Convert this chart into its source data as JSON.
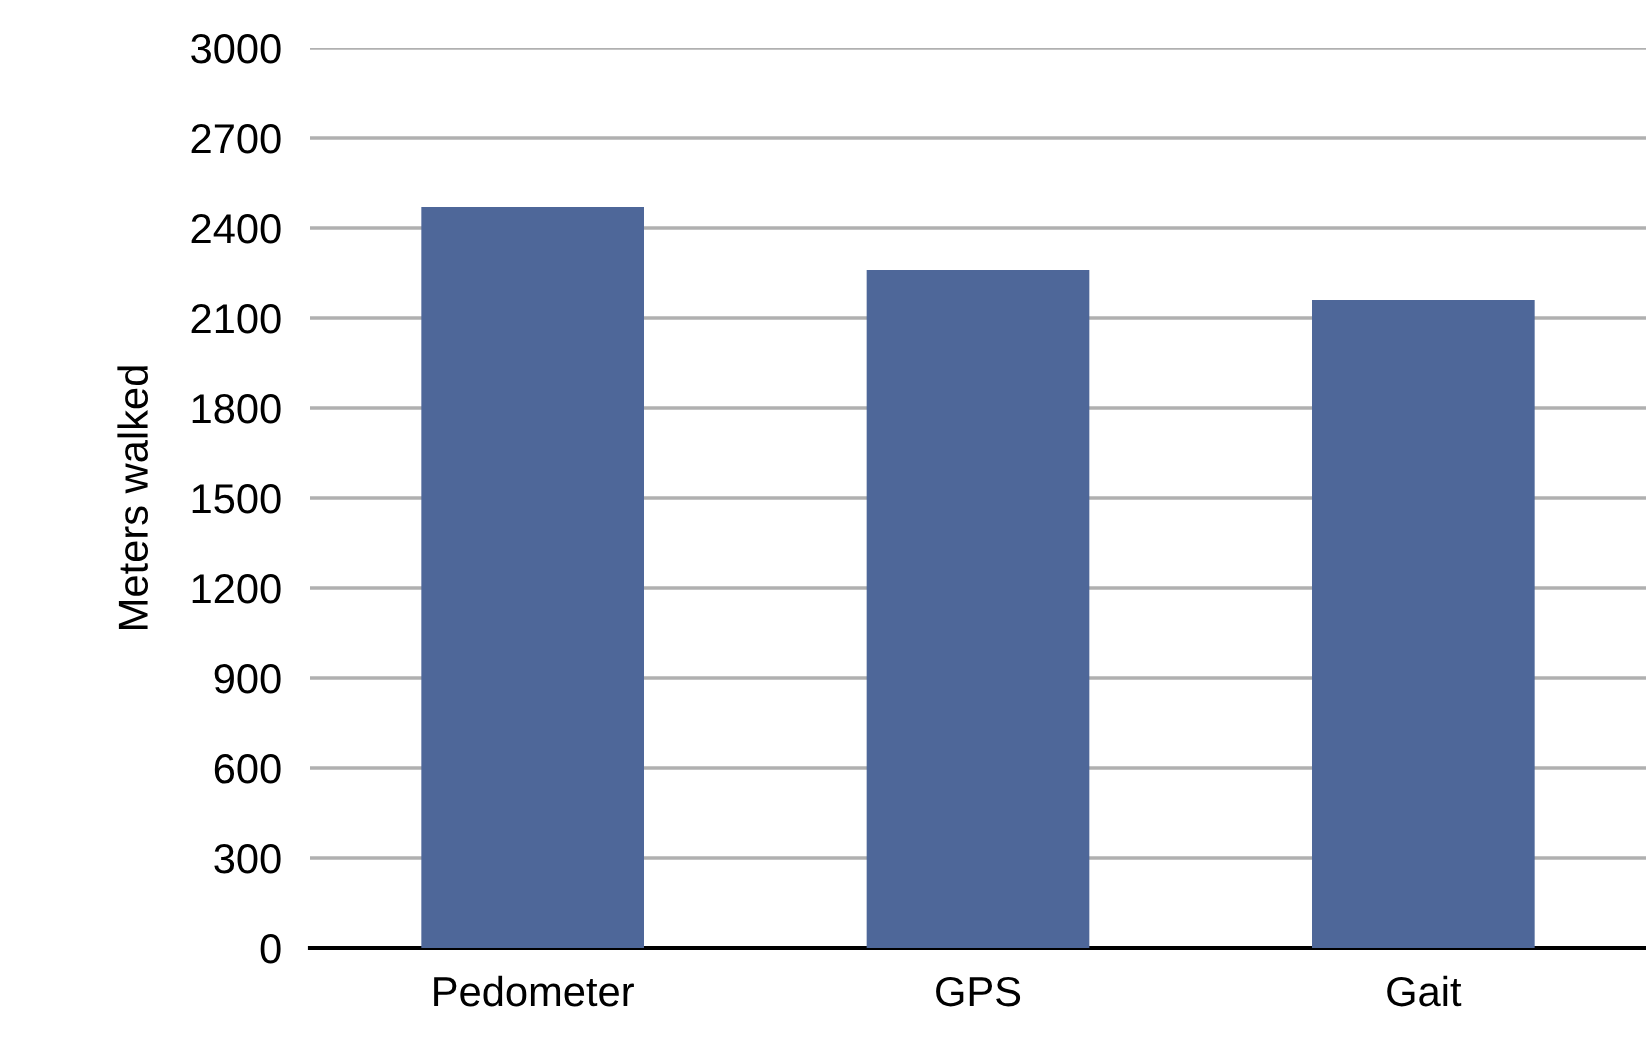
{
  "chart_data": {
    "type": "bar",
    "ylabel": "Meters walked",
    "categories": [
      "Pedometer",
      "GPS",
      "Gait"
    ],
    "values": [
      2470,
      2260,
      2160
    ],
    "color": "#4e6799",
    "ylim": [
      0,
      3000
    ],
    "yticks": [
      0,
      300,
      600,
      900,
      1200,
      1500,
      1800,
      2100,
      2400,
      2700,
      3000
    ],
    "grid": "y"
  }
}
